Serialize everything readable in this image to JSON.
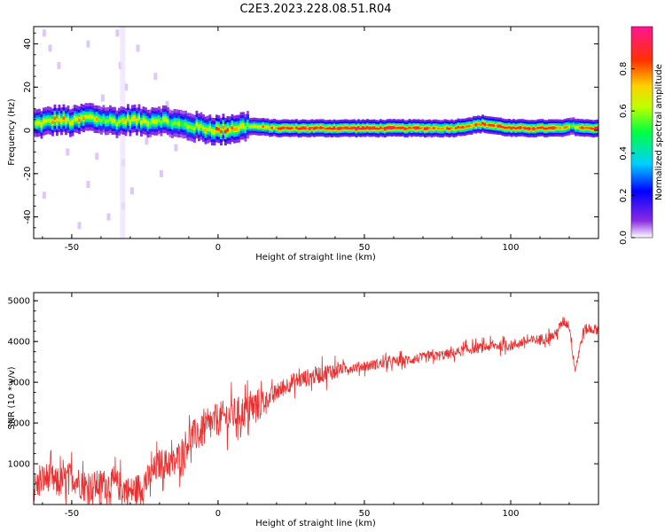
{
  "title": "C2E3.2023.228.08.51.R04",
  "chart_data": [
    {
      "type": "heatmap",
      "xlabel": "Height of straight line (km)",
      "ylabel": "Frequency (Hz)",
      "xlim": [
        -63,
        130
      ],
      "ylim": [
        -50,
        48
      ],
      "x_ticks": [
        -50,
        0,
        50,
        100
      ],
      "x_tick_labels": [
        "-50",
        "0",
        "50",
        "100"
      ],
      "y_ticks": [
        -40,
        -20,
        0,
        20,
        40
      ],
      "y_tick_labels": [
        "-40",
        "-20",
        "0",
        "20",
        "40"
      ],
      "colorbar": {
        "label": "Normalized spectral amplitude",
        "range": [
          0,
          1
        ],
        "ticks": [
          0.0,
          0.2,
          0.4,
          0.6,
          0.8
        ],
        "tick_labels": [
          "0.0",
          "0.2",
          "0.4",
          "0.6",
          "0.8"
        ]
      },
      "ridge": {
        "x": [
          -62,
          -55,
          -50,
          -45,
          -40,
          -35,
          -30,
          -25,
          -20,
          -15,
          -10,
          -5,
          0,
          5,
          10,
          20,
          40,
          60,
          80,
          90,
          100,
          110,
          118,
          120,
          125,
          130
        ],
        "frequency": [
          3,
          5,
          4,
          6,
          5,
          4,
          5,
          4,
          5,
          3,
          2,
          1,
          0,
          1,
          2,
          1,
          1,
          1,
          1,
          3,
          1,
          1,
          1,
          2,
          1,
          1
        ],
        "amplitude": [
          0.6,
          0.75,
          0.7,
          0.7,
          0.65,
          0.6,
          0.7,
          0.6,
          0.6,
          0.55,
          0.6,
          0.65,
          0.85,
          0.7,
          0.65,
          0.8,
          0.9,
          0.9,
          0.8,
          0.85,
          0.85,
          0.9,
          0.8,
          0.6,
          0.9,
          0.9
        ]
      },
      "grid": false
    },
    {
      "type": "line",
      "xlabel": "Height of straight line (km)",
      "ylabel": "SNR (10 * v/v)",
      "xlim": [
        -63,
        130
      ],
      "ylim": [
        0,
        5200
      ],
      "x_ticks": [
        -50,
        0,
        50,
        100
      ],
      "x_tick_labels": [
        "-50",
        "0",
        "50",
        "100"
      ],
      "y_ticks": [
        1000,
        2000,
        3000,
        4000,
        5000
      ],
      "y_tick_labels": [
        "1000",
        "2000",
        "3000",
        "4000",
        "5000"
      ],
      "color": "#e83030",
      "series": [
        {
          "x": [
            -63,
            -58,
            -55,
            -50,
            -45,
            -40,
            -35,
            -30,
            -25,
            -20,
            -15,
            -12,
            -10,
            -5,
            0,
            5,
            10,
            15,
            20,
            25,
            30,
            35,
            40,
            45,
            50,
            55,
            60,
            65,
            70,
            75,
            80,
            85,
            90,
            95,
            100,
            105,
            110,
            115,
            118,
            120,
            122,
            125,
            130
          ],
          "values": [
            400,
            700,
            500,
            700,
            400,
            500,
            500,
            300,
            500,
            1000,
            1000,
            1300,
            1600,
            1800,
            2100,
            2200,
            2300,
            2500,
            2750,
            3000,
            3100,
            3200,
            3300,
            3350,
            3400,
            3450,
            3500,
            3550,
            3600,
            3650,
            3700,
            3800,
            3850,
            3900,
            3900,
            4000,
            4050,
            4150,
            4500,
            4400,
            3300,
            4300,
            4300
          ]
        }
      ],
      "grid": false
    }
  ]
}
